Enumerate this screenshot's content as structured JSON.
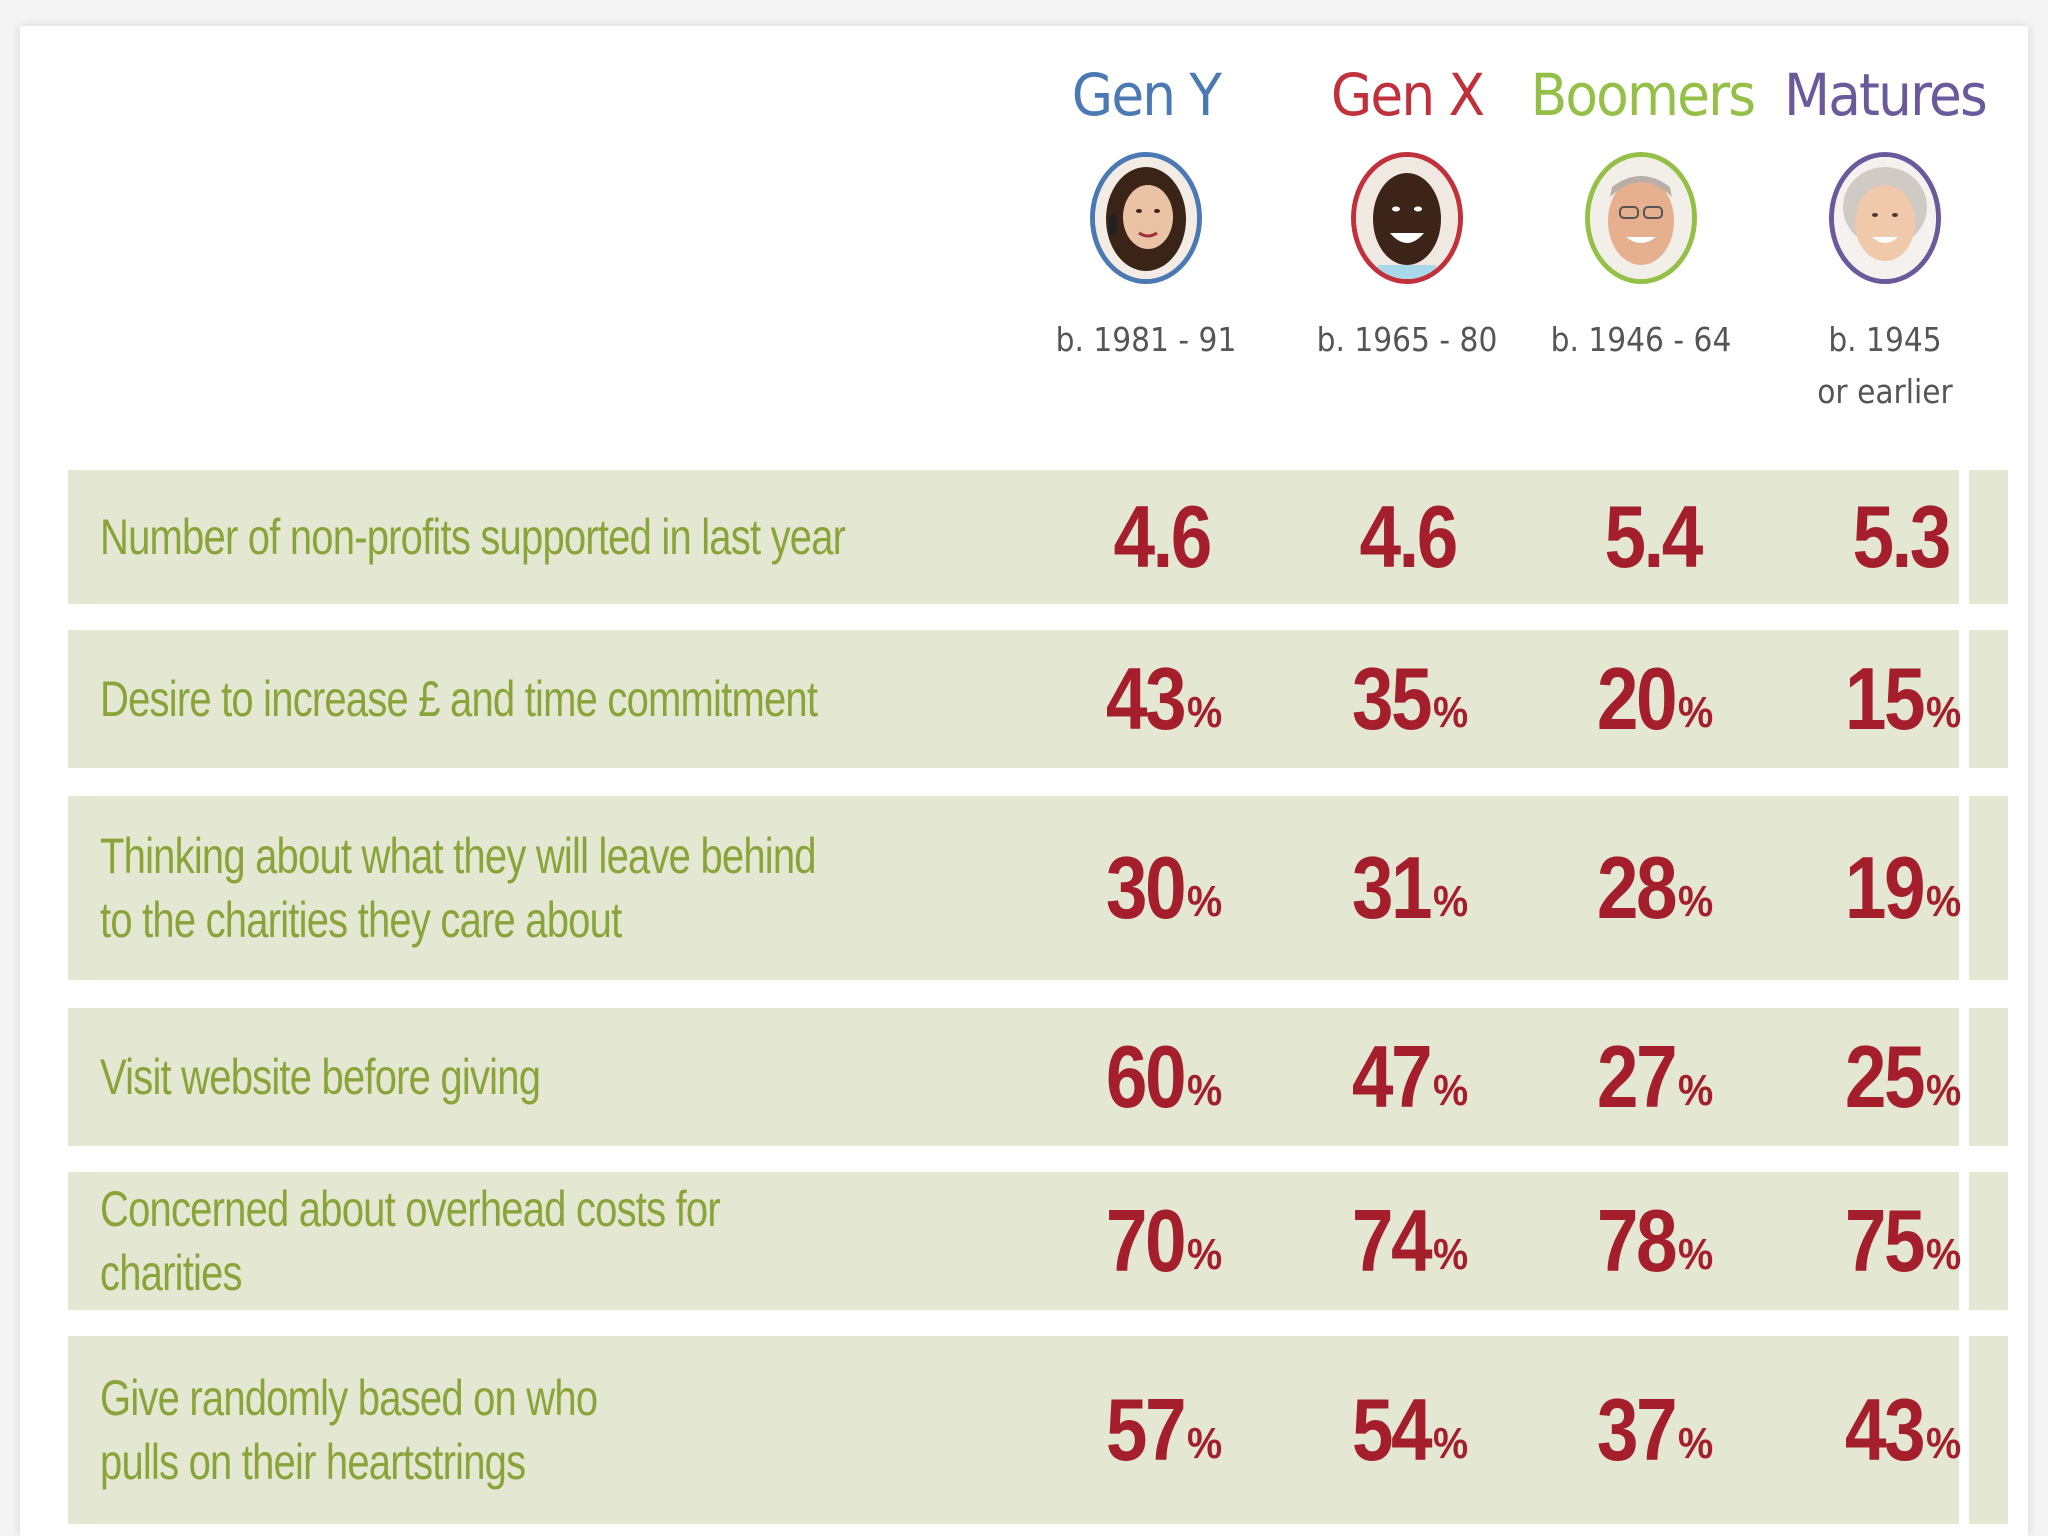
{
  "chart_data": {
    "type": "table",
    "generations": [
      {
        "name": "Gen Y",
        "born": "b. 1981 - 91",
        "color": "#4a79b3"
      },
      {
        "name": "Gen X",
        "born": "b. 1965 - 80",
        "color": "#c0313c"
      },
      {
        "name": "Boomers",
        "born": "b. 1946 - 64",
        "color": "#94c047"
      },
      {
        "name": "Matures",
        "born": "b. 1945",
        "born2": "or earlier",
        "color": "#6a5a9c"
      }
    ],
    "rows": [
      {
        "label": "Number of non-profits supported in last year",
        "values": [
          "4.6",
          "4.6",
          "5.4",
          "5.3"
        ],
        "unit": ""
      },
      {
        "label": "Desire to increase £ and time commitment",
        "values": [
          "43",
          "35",
          "20",
          "15"
        ],
        "unit": "%"
      },
      {
        "label": "Thinking about what they will leave behind to the charities they care about",
        "values": [
          "30",
          "31",
          "28",
          "19"
        ],
        "unit": "%"
      },
      {
        "label": "Visit website before giving",
        "values": [
          "60",
          "47",
          "27",
          "25"
        ],
        "unit": "%"
      },
      {
        "label": "Concerned about overhead costs for charities",
        "values": [
          "70",
          "74",
          "78",
          "75"
        ],
        "unit": "%"
      },
      {
        "label": "Give randomly based on who pulls on their heartstrings",
        "values": [
          "57",
          "54",
          "37",
          "43"
        ],
        "unit": "%"
      }
    ]
  },
  "colors": {
    "band": "#e4e8d3",
    "label_text": "#8aa43a",
    "value_text": "#a41f2b"
  }
}
